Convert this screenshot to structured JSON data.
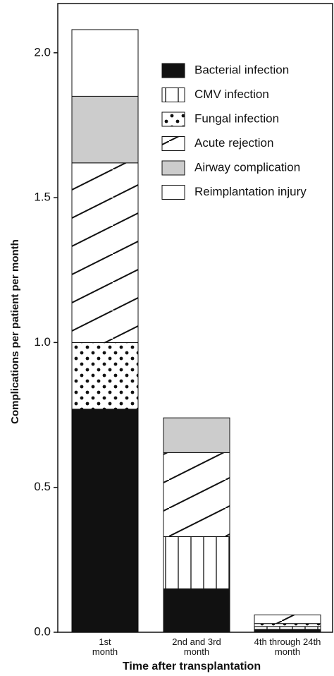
{
  "chart_data": {
    "type": "stacked-bar",
    "x_label": "Time after transplantation",
    "y_label": "Complications per patient per month",
    "categories": [
      "1st month",
      "2nd and 3rd month",
      "4th through 24th month"
    ],
    "series": [
      {
        "name": "Bacterial infection",
        "color": "#111111",
        "pattern": "solid",
        "values": [
          0.77,
          0.15,
          0.01
        ]
      },
      {
        "name": "CMV infection",
        "color": "#111111",
        "pattern": "vertical",
        "values": [
          0,
          0.18,
          0.01
        ]
      },
      {
        "name": "Fungal infection",
        "color": "#111111",
        "pattern": "dots",
        "values": [
          0.23,
          0,
          0.01
        ]
      },
      {
        "name": "Acute rejection",
        "color": "#111111",
        "pattern": "diagonal",
        "values": [
          0.62,
          0.29,
          0.03
        ]
      },
      {
        "name": "Airway complication",
        "color": "#cccccc",
        "pattern": "gray",
        "values": [
          0.23,
          0.12,
          0
        ]
      },
      {
        "name": "Reimplantation injury",
        "color": "#ffffff",
        "pattern": "none",
        "values": [
          0.23,
          0,
          0
        ]
      }
    ],
    "ylim": [
      0,
      2.17
    ],
    "yticks": [
      {
        "value": 0,
        "label": "0.0"
      },
      0.5,
      {
        "value": 1,
        "label": "1.0"
      },
      1.5,
      {
        "value": 2,
        "label": "2.0"
      }
    ]
  }
}
